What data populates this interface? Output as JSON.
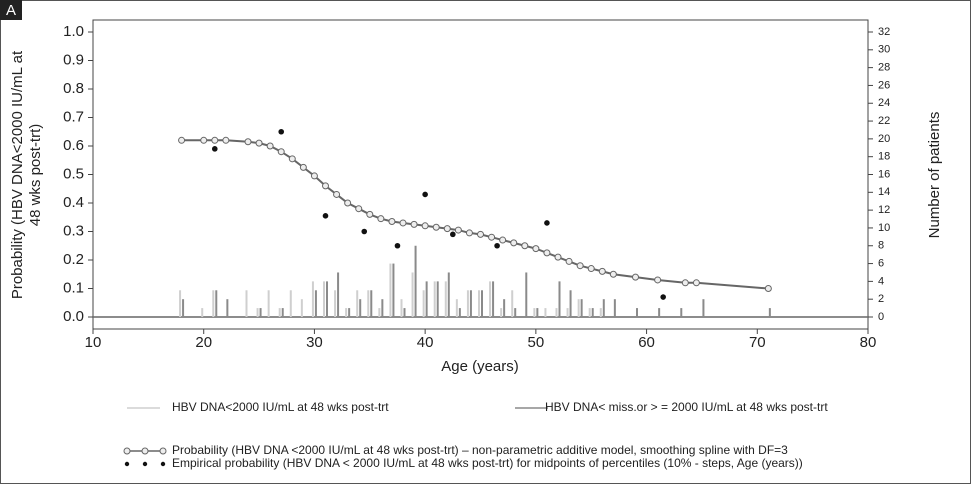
{
  "chart_data": {
    "type": "combo",
    "panel_label": "A",
    "xlabel": "Age (years)",
    "ylabel": [
      "Probability (HBV DNA<2000 IU/mL at",
      "48 wks post-trt)"
    ],
    "y2label": "Number of patients",
    "xlim": [
      10,
      80
    ],
    "xticks": [
      10,
      20,
      30,
      40,
      50,
      60,
      70,
      80
    ],
    "ylim": [
      0,
      1
    ],
    "yticks": [
      {
        "value": 0,
        "label": "0.0"
      },
      {
        "value": 0.1,
        "label": "0.1"
      },
      {
        "value": 0.2,
        "label": "0.2"
      },
      {
        "value": 0.3,
        "label": "0.3"
      },
      {
        "value": 0.4,
        "label": "0.4"
      },
      {
        "value": 0.5,
        "label": "0.5"
      },
      {
        "value": 0.6,
        "label": "0.6"
      },
      {
        "value": 0.7,
        "label": "0.7"
      },
      {
        "value": 0.8,
        "label": "0.8"
      },
      {
        "value": 0.9,
        "label": "0.9"
      },
      {
        "value": 1,
        "label": "1.0"
      }
    ],
    "y2lim": [
      0,
      32
    ],
    "y2ticks": [
      0,
      2,
      4,
      6,
      8,
      10,
      12,
      14,
      16,
      18,
      20,
      22,
      24,
      26,
      28,
      30,
      32
    ],
    "series": [
      {
        "name": "HBV DNA<2000 IU/mL at 48 wks post-trt",
        "type": "bar",
        "axis": "y2",
        "color": "#cfcfcf",
        "x": [
          18,
          20,
          21,
          22,
          24,
          25,
          26,
          27,
          28,
          29,
          30,
          31,
          32,
          33,
          34,
          35,
          36,
          37,
          38,
          39,
          40,
          41,
          42,
          43,
          44,
          45,
          46,
          47,
          48,
          49,
          50,
          51,
          52,
          53,
          54,
          55,
          56,
          57,
          59,
          61,
          63,
          65,
          71
        ],
        "values": [
          3,
          1,
          3,
          0,
          3,
          1,
          3,
          1,
          3,
          2,
          4,
          4,
          3,
          1,
          3,
          3,
          1,
          6,
          2,
          5,
          3,
          4,
          4,
          2,
          3,
          3,
          4,
          1,
          3,
          0,
          1,
          1,
          1,
          1,
          2,
          1,
          1,
          0,
          0,
          0,
          0,
          0,
          0
        ]
      },
      {
        "name": "HBV DNA< miss.or > = 2000 IU/mL at 48 wks post-trt",
        "type": "bar",
        "axis": "y2",
        "color": "#8a8a8a",
        "x": [
          18,
          20,
          21,
          22,
          24,
          25,
          26,
          27,
          28,
          29,
          30,
          31,
          32,
          33,
          34,
          35,
          36,
          37,
          38,
          39,
          40,
          41,
          42,
          43,
          44,
          45,
          46,
          47,
          48,
          49,
          50,
          51,
          52,
          53,
          54,
          55,
          56,
          57,
          59,
          61,
          63,
          65,
          71
        ],
        "values": [
          2,
          0,
          3,
          2,
          0,
          1,
          0,
          1,
          0,
          0,
          3,
          4,
          5,
          1,
          2,
          3,
          2,
          6,
          1,
          8,
          4,
          4,
          5,
          1,
          3,
          3,
          4,
          2,
          1,
          5,
          1,
          0,
          4,
          3,
          2,
          1,
          2,
          2,
          1,
          1,
          1,
          2,
          1
        ]
      },
      {
        "name": "Probability (HBV DNA <2000 IU/mL at 48 wks post-trt) – non-parametric additive model, smoothing spline with DF=3",
        "type": "line",
        "color": "#666666",
        "x": [
          18,
          20,
          21,
          22,
          24,
          25,
          26,
          27,
          28,
          29,
          30,
          31,
          32,
          33,
          34,
          35,
          36,
          37,
          38,
          39,
          40,
          41,
          42,
          43,
          44,
          45,
          46,
          47,
          48,
          49,
          50,
          51,
          52,
          53,
          54,
          55,
          56,
          57,
          59,
          61,
          63.5,
          64.5,
          71
        ],
        "values": [
          0.62,
          0.62,
          0.62,
          0.62,
          0.615,
          0.61,
          0.6,
          0.58,
          0.555,
          0.525,
          0.495,
          0.46,
          0.43,
          0.4,
          0.38,
          0.36,
          0.345,
          0.335,
          0.33,
          0.325,
          0.32,
          0.315,
          0.31,
          0.305,
          0.295,
          0.29,
          0.28,
          0.27,
          0.26,
          0.25,
          0.24,
          0.225,
          0.21,
          0.195,
          0.18,
          0.17,
          0.16,
          0.15,
          0.14,
          0.13,
          0.12,
          0.12,
          0.1
        ]
      },
      {
        "name": "Empirical probability (HBV DNA < 2000 IU/mL at 48 wks post-trt) for midpoints of percentiles (10% - steps, Age (years))",
        "type": "scatter",
        "color": "#111111",
        "x": [
          21,
          27,
          31,
          34.5,
          37.5,
          40,
          42.5,
          46.5,
          51,
          61.5
        ],
        "values": [
          0.59,
          0.65,
          0.355,
          0.3,
          0.25,
          0.43,
          0.29,
          0.25,
          0.33,
          0.07
        ]
      }
    ]
  }
}
